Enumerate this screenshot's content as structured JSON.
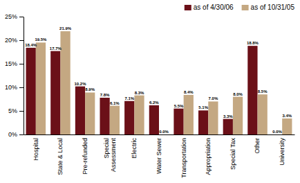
{
  "chart_data": {
    "type": "bar",
    "categories": [
      "Hospital",
      "State & Local",
      "Pre-refunded",
      "Special\nAssessment",
      "Electric",
      "Water Sewer",
      "Transportation",
      "Appropriation",
      "Special Tax",
      "Other",
      "University"
    ],
    "series": [
      {
        "name": "as of 4/30/06",
        "color": "#6B1018",
        "values": [
          18.4,
          17.7,
          10.2,
          7.8,
          7.1,
          6.2,
          5.5,
          5.1,
          3.3,
          18.8,
          0.0
        ],
        "value_labels": [
          "18.4%",
          "17.7%",
          "10.2%",
          "7.8%",
          "7.1%",
          "6.2%",
          "5.5%",
          "5.1%",
          "3.3%",
          "18.8%",
          "0.0%"
        ]
      },
      {
        "name": "as of 10/31/05",
        "color": "#C4A882",
        "values": [
          19.5,
          21.9,
          8.9,
          6.1,
          8.3,
          0.0,
          8.4,
          7.0,
          8.0,
          8.5,
          3.4
        ],
        "value_labels": [
          "19.5%",
          "21.9%",
          "8.9%",
          "6.1%",
          "8.3%",
          "0.0%",
          "8.4%",
          "7.0%",
          "8.0%",
          "8.5%",
          "3.4%"
        ]
      }
    ],
    "ylim": [
      0,
      25
    ],
    "yticks": [
      {
        "value": 0,
        "label": "0%"
      },
      {
        "value": 5,
        "label": "5%"
      },
      {
        "value": 10,
        "label": "10%"
      },
      {
        "value": 15,
        "label": "15%"
      },
      {
        "value": 20,
        "label": "20%"
      },
      {
        "value": 25,
        "label": "25%"
      }
    ],
    "grid": false,
    "legend": "top-right",
    "data_labels": true
  }
}
